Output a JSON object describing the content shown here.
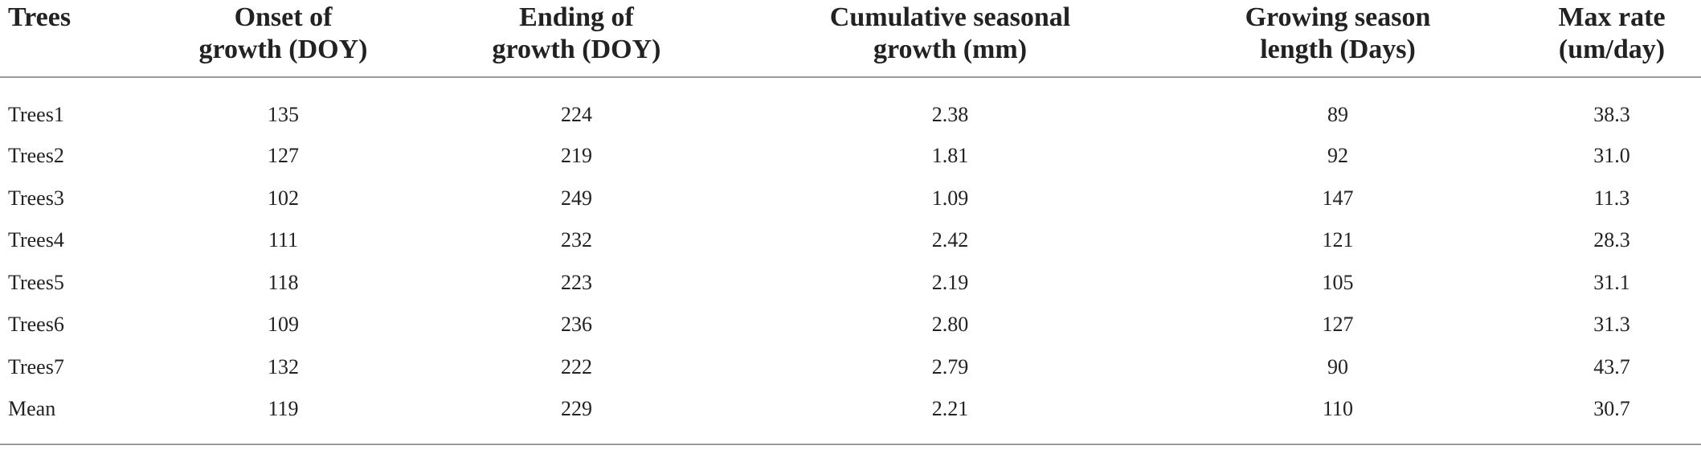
{
  "table": {
    "headers": [
      {
        "line1": "Trees",
        "line2": ""
      },
      {
        "line1": "Onset of",
        "line2": "growth (DOY)"
      },
      {
        "line1": "Ending of",
        "line2": "growth (DOY)"
      },
      {
        "line1": "Cumulative seasonal",
        "line2": "growth (mm)"
      },
      {
        "line1": "Growing season",
        "line2": "length (Days)"
      },
      {
        "line1": "Max rate",
        "line2": "(um/day)"
      }
    ],
    "rows": [
      [
        "Trees1",
        "135",
        "224",
        "2.38",
        "89",
        "38.3"
      ],
      [
        "Trees2",
        "127",
        "219",
        "1.81",
        "92",
        "31.0"
      ],
      [
        "Trees3",
        "102",
        "249",
        "1.09",
        "147",
        "11.3"
      ],
      [
        "Trees4",
        "111",
        "232",
        "2.42",
        "121",
        "28.3"
      ],
      [
        "Trees5",
        "118",
        "223",
        "2.19",
        "105",
        "31.1"
      ],
      [
        "Trees6",
        "109",
        "236",
        "2.80",
        "127",
        "31.3"
      ],
      [
        "Trees7",
        "132",
        "222",
        "2.79",
        "90",
        "43.7"
      ],
      [
        "Mean",
        "119",
        "229",
        "2.21",
        "110",
        "30.7"
      ]
    ]
  }
}
